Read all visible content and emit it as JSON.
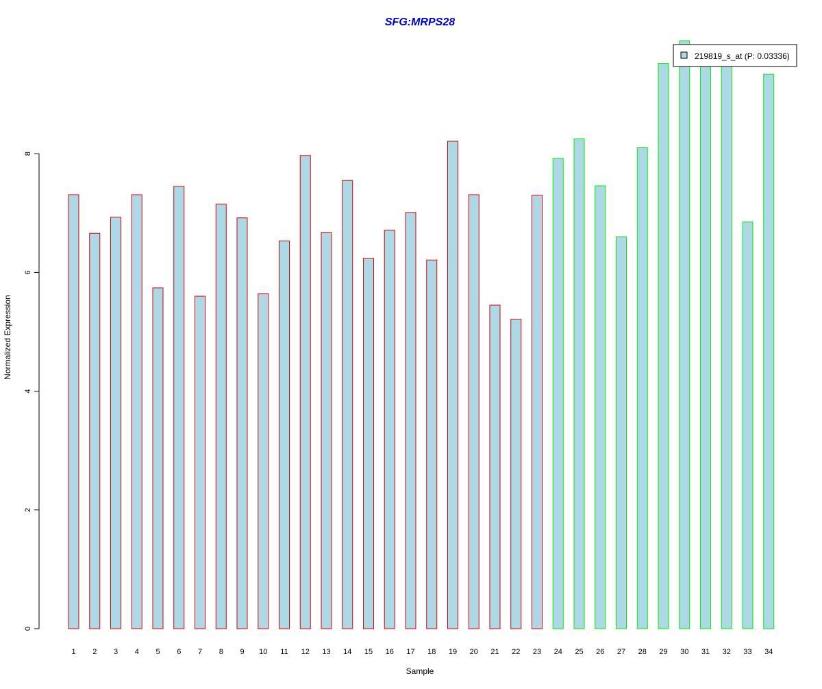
{
  "colors": {
    "title": "#0000CC",
    "bar_fill": "#ADD8E6",
    "group1_stroke": "#E00000",
    "group2_stroke": "#00EE00",
    "axis": "#000000"
  },
  "chart_data": {
    "type": "bar",
    "title": "SFG:MRPS28",
    "xlabel": "Sample",
    "ylabel": "Normalized Expression",
    "ylim": [
      0,
      10
    ],
    "yticks": [
      0,
      2,
      4,
      6,
      8
    ],
    "grid": false,
    "legend": {
      "position": "top-right",
      "label": "219819_s_at (P: 0.03336)"
    },
    "categories": [
      "1",
      "2",
      "3",
      "4",
      "5",
      "6",
      "7",
      "8",
      "9",
      "10",
      "11",
      "12",
      "13",
      "14",
      "15",
      "16",
      "17",
      "18",
      "19",
      "20",
      "21",
      "22",
      "23",
      "24",
      "25",
      "26",
      "27",
      "28",
      "29",
      "30",
      "31",
      "32",
      "33",
      "34"
    ],
    "values": [
      7.31,
      6.66,
      6.93,
      7.31,
      5.74,
      7.45,
      5.6,
      7.15,
      6.92,
      5.64,
      6.53,
      7.97,
      6.67,
      7.55,
      6.24,
      6.71,
      7.01,
      6.21,
      8.21,
      7.31,
      5.45,
      5.21,
      7.3,
      7.92,
      8.25,
      7.46,
      6.6,
      8.1,
      9.52,
      9.9,
      9.62,
      9.75,
      6.85,
      9.34
    ],
    "groups": [
      1,
      1,
      1,
      1,
      1,
      1,
      1,
      1,
      1,
      1,
      1,
      1,
      1,
      1,
      1,
      1,
      1,
      1,
      1,
      1,
      1,
      1,
      1,
      2,
      2,
      2,
      2,
      2,
      2,
      2,
      2,
      2,
      2,
      2
    ]
  }
}
